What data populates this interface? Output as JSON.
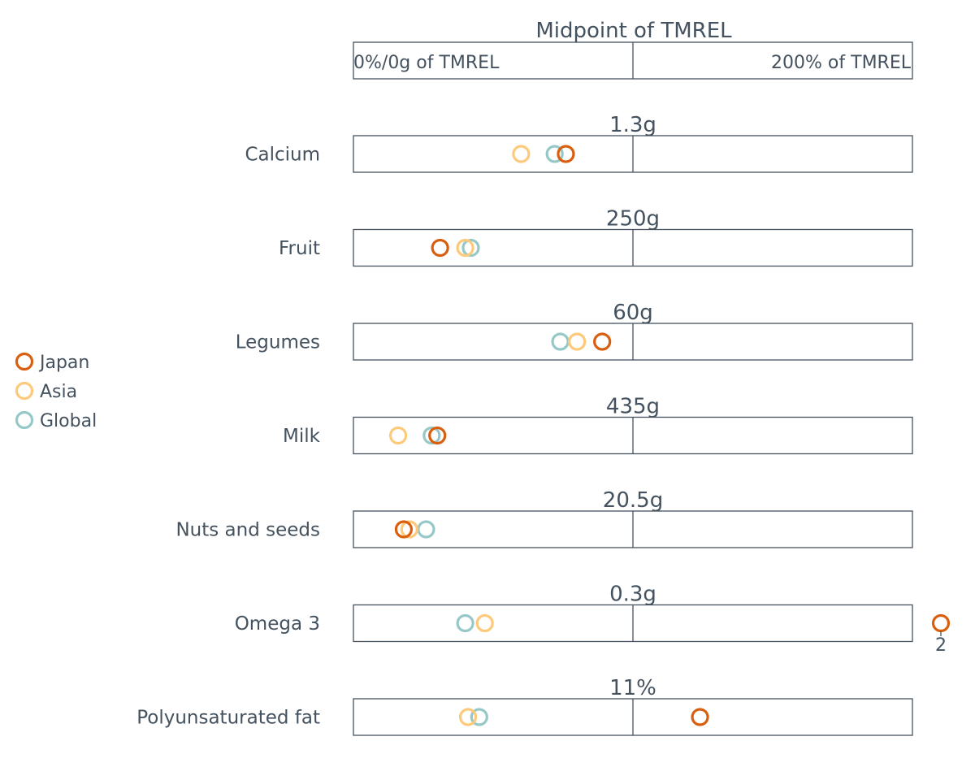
{
  "header": {
    "title": "Midpoint of TMREL",
    "left_label": "0%/0g of TMREL",
    "right_label": "200% of TMREL"
  },
  "colors": {
    "Japan": "#d95f0e",
    "Asia": "#fdc97a",
    "Global": "#96c8c8",
    "text": "#44525f"
  },
  "chart_data": {
    "type": "scatter",
    "title": "Midpoint of TMREL",
    "x_unit": "percent of TMREL",
    "xlim": [
      0,
      200
    ],
    "axis_labels": {
      "left": "0%/0g of TMREL",
      "right": "200% of TMREL"
    },
    "legend": {
      "position": "left",
      "entries": [
        "Japan",
        "Asia",
        "Global"
      ]
    },
    "series": [
      {
        "name": "Japan",
        "values": [
          76,
          31,
          89,
          30,
          18,
          210,
          124
        ]
      },
      {
        "name": "Asia",
        "values": [
          60,
          40,
          80,
          16,
          20,
          47,
          41
        ]
      },
      {
        "name": "Global",
        "values": [
          72,
          42,
          74,
          28,
          26,
          40,
          45
        ]
      }
    ],
    "categories": [
      {
        "name": "Calcium",
        "midpoint_label": "1.3g"
      },
      {
        "name": "Fruit",
        "midpoint_label": "250g"
      },
      {
        "name": "Legumes",
        "midpoint_label": "60g"
      },
      {
        "name": "Milk",
        "midpoint_label": "435g"
      },
      {
        "name": "Nuts and seeds",
        "midpoint_label": "20.5g"
      },
      {
        "name": "Omega 3",
        "midpoint_label": "0.3g"
      },
      {
        "name": "Polyunsaturated fat",
        "midpoint_label": "11%"
      }
    ],
    "out_of_range_note": {
      "category": "Omega 3",
      "series": "Japan",
      "label": "2"
    }
  }
}
